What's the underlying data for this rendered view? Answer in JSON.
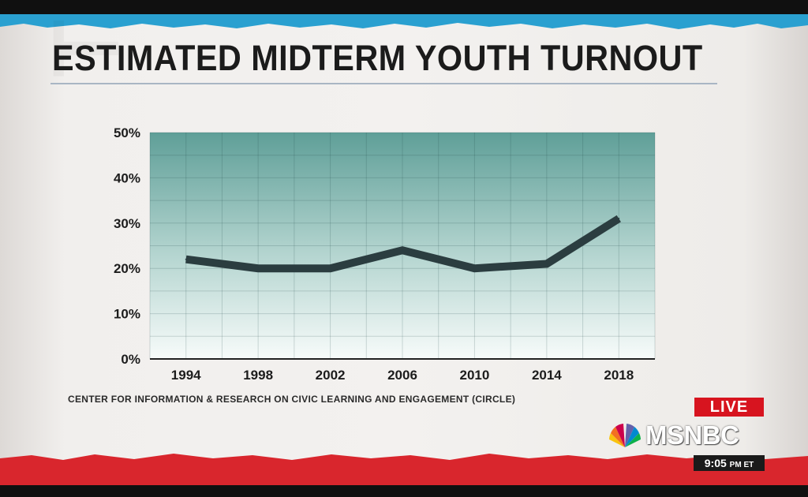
{
  "title": "ESTIMATED MIDTERM YOUTH TURNOUT",
  "source": "CENTER FOR INFORMATION & RESEARCH ON CIVIC LEARNING AND ENGAGEMENT (CIRCLE)",
  "broadcast": {
    "live_label": "LIVE",
    "network": "MSNBC",
    "clock": "9:05",
    "clock_suffix": "PM ET"
  },
  "colors": {
    "top_band": "#2aa0d0",
    "bottom_band": "#d9262d",
    "line": "#2b3d40",
    "plot_top": "#5f9f98",
    "plot_bottom": "#f7fbfa",
    "live_badge": "#d7141f"
  },
  "chart_data": {
    "type": "line",
    "title": "ESTIMATED MIDTERM YOUTH TURNOUT",
    "xlabel": "",
    "ylabel": "",
    "x": [
      1994,
      1998,
      2002,
      2006,
      2010,
      2014,
      2018
    ],
    "x_tick_labels": [
      "1994",
      "1998",
      "2002",
      "2006",
      "2010",
      "2014",
      "2018"
    ],
    "series": [
      {
        "values": [
          22,
          20,
          20,
          24,
          20,
          21,
          31
        ]
      }
    ],
    "xlim": [
      1992,
      2020
    ],
    "ylim": [
      0,
      50
    ],
    "y_ticks": [
      0,
      10,
      20,
      30,
      40,
      50
    ],
    "y_tick_labels": [
      "0%",
      "10%",
      "20%",
      "30%",
      "40%",
      "50%"
    ],
    "grid": true,
    "legend": "none",
    "source": "CENTER FOR INFORMATION & RESEARCH ON CIVIC LEARNING AND ENGAGEMENT (CIRCLE)"
  }
}
